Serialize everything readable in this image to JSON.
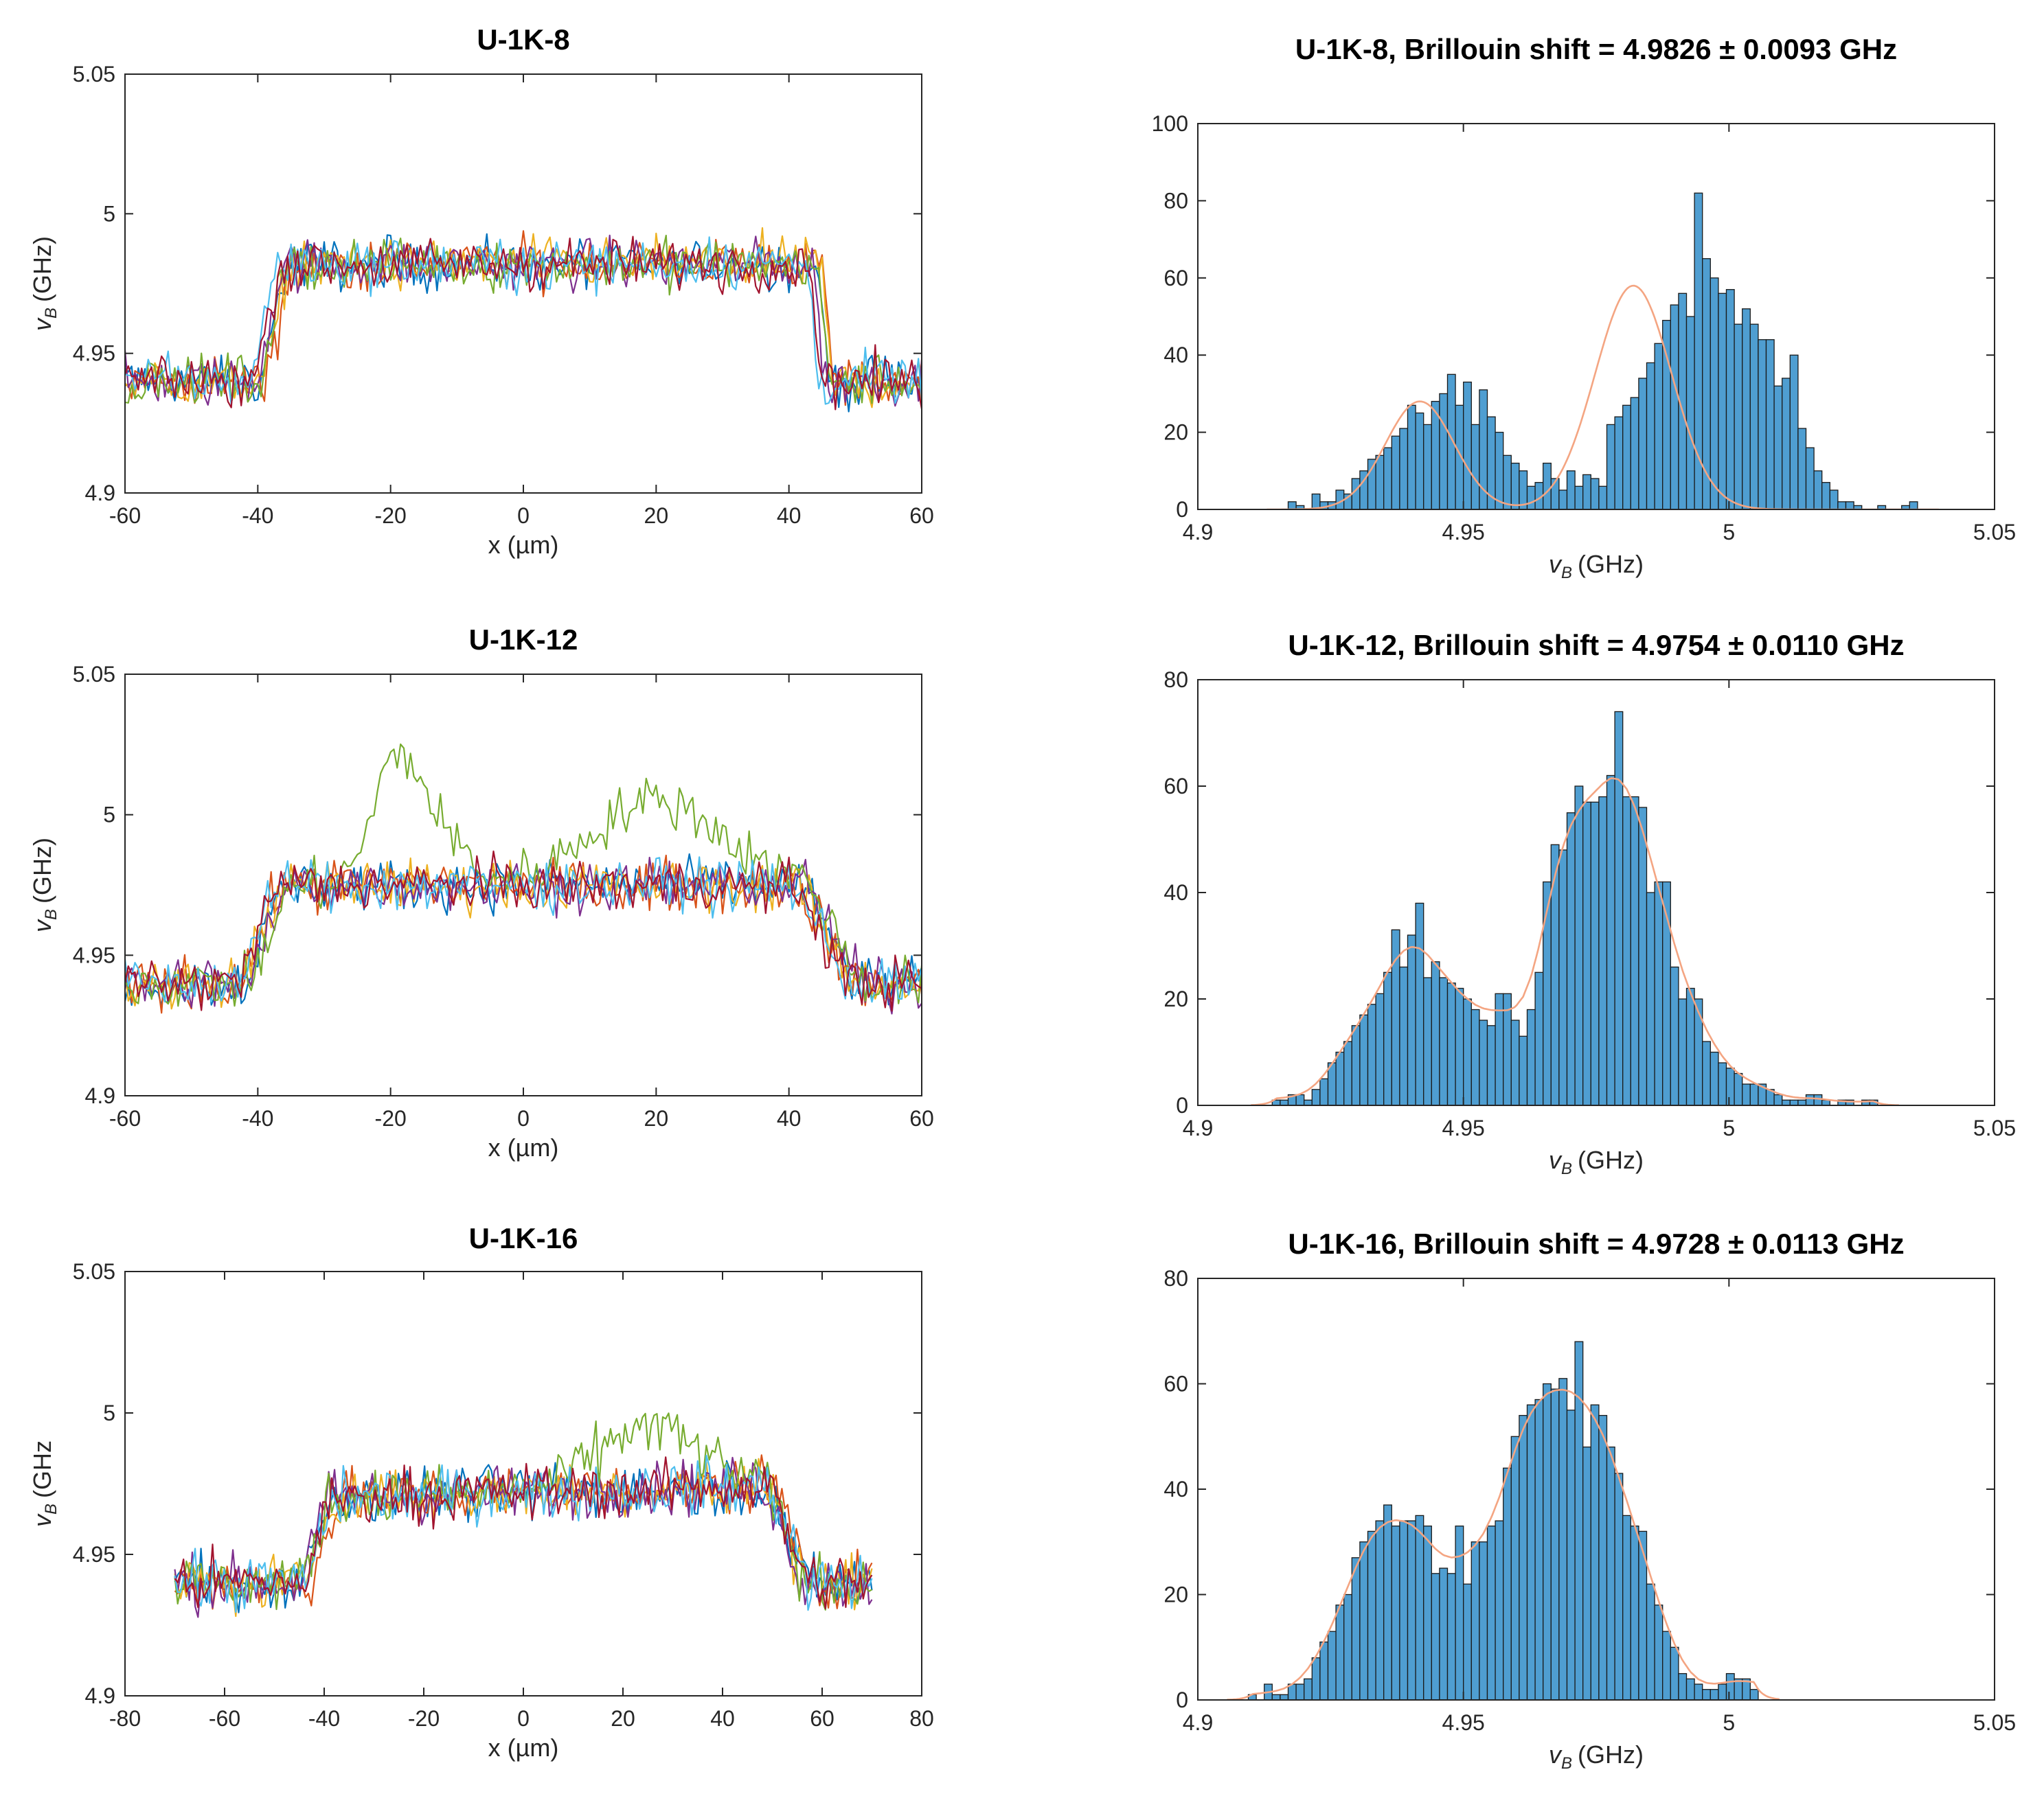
{
  "figure_caption": "",
  "chart_data": [
    {
      "type": "line",
      "title": "U-1K-8",
      "xlabel": "x (µm)",
      "ylabel_symbol": "v",
      "ylabel_sub": "B",
      "ylabel_unit": "(GHz)",
      "xlim": [
        -60,
        60
      ],
      "ylim": [
        4.9,
        5.05
      ],
      "xticks": [
        -60,
        -40,
        -20,
        0,
        20,
        40,
        60
      ],
      "yticks": [
        "4.9",
        "4.95",
        "5",
        "5.05"
      ],
      "yticks_values": [
        4.9,
        4.95,
        5.0,
        5.05
      ],
      "series_colors": [
        "#0072BD",
        "#D95319",
        "#EDB120",
        "#7E2F8E",
        "#77AC30",
        "#4DBEEE",
        "#A2142F"
      ],
      "x_range": [
        -60,
        60
      ],
      "profile": {
        "low": 4.94,
        "high": 4.982,
        "rise_start": -40,
        "rise_end": -36,
        "fall_start": 44,
        "fall_end": 45.5,
        "high_slope": 0.0,
        "noise": 0.007
      },
      "series_count": 7
    },
    {
      "type": "bar",
      "title": "U-1K-8, Brillouin  shift = 4.9826 ± 0.0093 GHz",
      "xlabel_symbol": "v",
      "xlabel_sub": "B",
      "xlabel_unit": "(GHz)",
      "xlim": [
        4.9,
        5.05
      ],
      "ylim": [
        0,
        100
      ],
      "xticks": [
        "4.9",
        "4.95",
        "5",
        "5.05"
      ],
      "xticks_values": [
        4.9,
        4.95,
        5.0,
        5.05
      ],
      "yticks": [
        0,
        20,
        40,
        60,
        80,
        100
      ],
      "bar_color": "#4F9ED1",
      "fit_color": "#F4A582",
      "bin_start": 4.917,
      "bin_width": 0.0015,
      "counts": [
        2,
        1,
        0,
        4,
        2,
        2,
        5,
        4,
        8,
        10,
        13,
        14,
        16,
        19,
        21,
        27,
        25,
        22,
        28,
        30,
        35,
        27,
        33,
        22,
        31,
        24,
        20,
        14,
        12,
        10,
        6,
        7,
        12,
        8,
        5,
        10,
        6,
        9,
        8,
        6,
        22,
        24,
        27,
        29,
        34,
        38,
        43,
        49,
        53,
        56,
        50,
        82,
        65,
        60,
        56,
        57,
        48,
        52,
        48,
        44,
        44,
        32,
        34,
        40,
        21,
        16,
        10,
        7,
        5,
        2,
        2,
        1,
        0,
        0,
        1,
        0,
        0,
        1,
        2
      ],
      "fit_peaks": [
        {
          "mu": 4.9418,
          "sigma": 0.0065,
          "amp": 28
        },
        {
          "mu": 4.982,
          "sigma": 0.0072,
          "amp": 58
        }
      ]
    },
    {
      "type": "line",
      "title": "U-1K-12",
      "xlabel": "x (µm)",
      "ylabel_symbol": "v",
      "ylabel_sub": "B",
      "ylabel_unit": "(GHz)",
      "xlim": [
        -60,
        60
      ],
      "ylim": [
        4.9,
        5.05
      ],
      "xticks": [
        -60,
        -40,
        -20,
        0,
        20,
        40,
        60
      ],
      "yticks": [
        "4.9",
        "4.95",
        "5",
        "5.05"
      ],
      "yticks_values": [
        4.9,
        4.95,
        5.0,
        5.05
      ],
      "series_colors": [
        "#0072BD",
        "#D95319",
        "#EDB120",
        "#7E2F8E",
        "#77AC30",
        "#4DBEEE",
        "#A2142F"
      ],
      "x_range": [
        -60,
        60
      ],
      "profile": {
        "low": 4.94,
        "high": 4.975,
        "rise_start": -42,
        "rise_end": -36,
        "fall_start": 42,
        "fall_end": 50,
        "high_slope": 0.0,
        "noise": 0.007
      },
      "series_count": 7,
      "outlier": {
        "series": 4,
        "bumps": [
          {
            "x": -19,
            "h": 0.045,
            "w": 5
          },
          {
            "x": -12,
            "h": 0.015,
            "w": 5
          },
          {
            "x": 20,
            "h": 0.03,
            "w": 14
          }
        ]
      }
    },
    {
      "type": "bar",
      "title": "U-1K-12, Brillouin  shift = 4.9754 ± 0.0110 GHz",
      "xlabel_symbol": "v",
      "xlabel_sub": "B",
      "xlabel_unit": "(GHz)",
      "xlim": [
        4.9,
        5.05
      ],
      "ylim": [
        0,
        80
      ],
      "xticks": [
        "4.9",
        "4.95",
        "5",
        "5.05"
      ],
      "xticks_values": [
        4.9,
        4.95,
        5.0,
        5.05
      ],
      "yticks": [
        0,
        20,
        40,
        60,
        80
      ],
      "bar_color": "#4F9ED1",
      "fit_color": "#F4A582",
      "bin_start": 4.914,
      "bin_width": 0.0015,
      "counts": [
        1,
        1,
        2,
        2,
        1,
        3,
        5,
        8,
        10,
        12,
        15,
        17,
        19,
        21,
        25,
        33,
        26,
        32,
        38,
        24,
        27,
        24,
        23,
        22,
        20,
        18,
        16,
        15,
        21,
        21,
        16,
        13,
        18,
        25,
        42,
        49,
        48,
        55,
        60,
        57,
        57,
        58,
        62,
        74,
        58,
        58,
        56,
        40,
        42,
        42,
        26,
        20,
        22,
        20,
        12,
        10,
        8,
        7,
        6,
        4,
        4,
        4,
        3,
        2,
        1,
        1,
        1,
        2,
        2,
        1,
        0,
        1,
        1,
        0,
        1,
        1
      ]
    },
    {
      "type": "line",
      "title": "U-1K-16",
      "xlabel": "x (µm)",
      "ylabel_symbol": "v",
      "ylabel_sub": "B",
      "ylabel_unit": "(GHz",
      "xlim": [
        -80,
        80
      ],
      "ylim": [
        4.9,
        5.05
      ],
      "xticks": [
        -80,
        -60,
        -40,
        -20,
        0,
        20,
        40,
        60,
        80
      ],
      "yticks": [
        "4.9",
        "4.95",
        "5",
        "5.05"
      ],
      "yticks_values": [
        4.9,
        4.95,
        5.0,
        5.05
      ],
      "series_colors": [
        "#0072BD",
        "#D95319",
        "#EDB120",
        "#7E2F8E",
        "#77AC30",
        "#4DBEEE",
        "#A2142F"
      ],
      "x_range": [
        -70,
        70
      ],
      "profile": {
        "low": 4.94,
        "high": 4.972,
        "rise_start": -44,
        "rise_end": -38,
        "fall_start": 50,
        "fall_end": 57,
        "high_slope": 5e-05,
        "noise": 0.0075
      },
      "series_count": 7,
      "outlier": {
        "series": 4,
        "bumps": [
          {
            "x": 25,
            "h": 0.022,
            "w": 14
          }
        ]
      }
    },
    {
      "type": "bar",
      "title": "U-1K-16, Brillouin  shift = 4.9728 ± 0.0113 GHz",
      "xlabel_symbol": "v",
      "xlabel_sub": "B",
      "xlabel_unit": "(GHz)",
      "xlim": [
        4.9,
        5.05
      ],
      "ylim": [
        0,
        80
      ],
      "xticks": [
        "4.9",
        "4.95",
        "5",
        "5.05"
      ],
      "xticks_values": [
        4.9,
        4.95,
        5.0,
        5.05
      ],
      "yticks": [
        0,
        20,
        40,
        60,
        80
      ],
      "bar_color": "#4F9ED1",
      "fit_color": "#F4A582",
      "bin_start": 4.9095,
      "bin_width": 0.0015,
      "counts": [
        1,
        0,
        3,
        1,
        1,
        3,
        3,
        4,
        8,
        11,
        13,
        18,
        20,
        27,
        30,
        32,
        34,
        37,
        33,
        34,
        34,
        35,
        33,
        24,
        25,
        24,
        33,
        22,
        30,
        30,
        33,
        34,
        44,
        50,
        54,
        56,
        57,
        60,
        59,
        61,
        55,
        68,
        48,
        56,
        54,
        48,
        43,
        35,
        33,
        32,
        22,
        18,
        13,
        10,
        5,
        4,
        3,
        2,
        2,
        3,
        5,
        4,
        4,
        2
      ]
    }
  ]
}
